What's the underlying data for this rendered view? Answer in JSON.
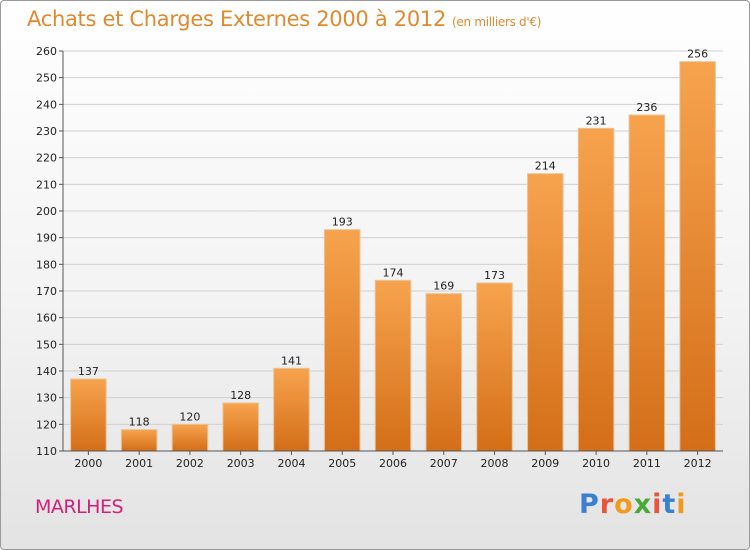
{
  "title": "Achats et Charges Externes 2000 à 2012",
  "subtitle": "(en milliers d'€)",
  "city": "MARLHES",
  "logo": {
    "text": "Proxiti",
    "letter_colors": [
      "#3a7fd0",
      "#e8553a",
      "#f29a1d",
      "#4aa838",
      "#e8553a",
      "#3a7fd0",
      "#f29a1d"
    ]
  },
  "colors": {
    "bar": "#f0923a",
    "bar_dark": "#d8731c",
    "grid": "#d0d0d0",
    "text": "#222222"
  },
  "chart_data": {
    "type": "bar",
    "categories": [
      "2000",
      "2001",
      "2002",
      "2003",
      "2004",
      "2005",
      "2006",
      "2007",
      "2008",
      "2009",
      "2010",
      "2011",
      "2012"
    ],
    "values": [
      137,
      118,
      120,
      128,
      141,
      193,
      174,
      169,
      173,
      214,
      231,
      236,
      256
    ],
    "ylim": [
      110,
      260
    ],
    "yticks": [
      110,
      120,
      130,
      140,
      150,
      160,
      170,
      180,
      190,
      200,
      210,
      220,
      230,
      240,
      250,
      260
    ],
    "grid": true
  }
}
